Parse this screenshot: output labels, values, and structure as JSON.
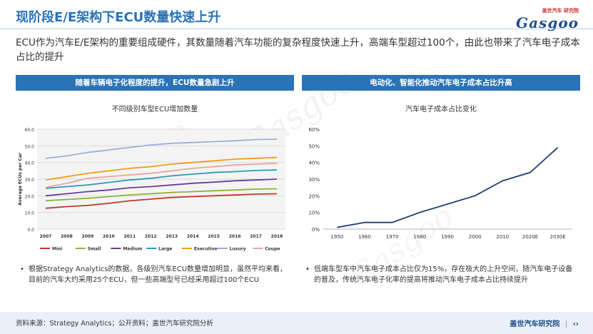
{
  "page": {
    "title": "现阶段E/E架构下ECU数量快速上升",
    "intro": "ECU作为汽车E/E架构的重要组成硬件，其数量随着汽车功能的复杂程度快速上升，高端车型超过100个，由此也带来了汽车电子成本占比的提升",
    "logo_top": "盖世汽车 研究院",
    "logo_main": "Gasgoo",
    "watermark": "Gasgoo"
  },
  "left": {
    "banner": "随着车辆电子化程度的提升，ECU数量急剧上升",
    "bullet": "根据Strategy Analytics的数据，各级别汽车ECU数量增加明显，虽然平均来看，目前的汽车大约采用25个ECU，但一些高端型号已经采用超过100个ECU"
  },
  "right": {
    "banner": "电动化、智能化推动汽车电子成本占比升高",
    "bullet": "低端车型车中汽车电子成本占比仅为15%，存在极大的上升空间，随汽车电子设备的普及，传统汽车电子化率的提高将推动汽车电子成本占比持续提升"
  },
  "footer": {
    "source": "资料来源：Strategy Analytics；公开资料；盖世汽车研究院分析",
    "brand": "盖世汽车研究院",
    "separator": "|"
  },
  "chart_data": [
    {
      "type": "line",
      "title": "不同级别车型ECU增加数量",
      "xlabel": "",
      "ylabel": "Average ECUs per Car",
      "x": [
        "2007",
        "2008",
        "2009",
        "2010",
        "2011",
        "2012",
        "2013",
        "2014",
        "2015",
        "2016",
        "2017",
        "2018"
      ],
      "ylim": [
        0,
        60
      ],
      "yticks": [
        "0.0",
        "10.0",
        "20.0",
        "30.0",
        "40.0",
        "50.0",
        "60.0"
      ],
      "grid": true,
      "legend": "bottom",
      "series": [
        {
          "name": "Mini",
          "color": "#c0392b",
          "values": [
            12.5,
            13.5,
            14.2,
            15.5,
            17.0,
            18.0,
            19.0,
            19.5,
            20.0,
            20.5,
            21.0,
            21.2
          ]
        },
        {
          "name": "Small",
          "color": "#8db33a",
          "values": [
            17.0,
            17.8,
            18.5,
            19.5,
            20.5,
            21.2,
            22.0,
            22.5,
            23.0,
            23.5,
            24.0,
            24.2
          ]
        },
        {
          "name": "Medium",
          "color": "#6a3d9a",
          "values": [
            20.0,
            21.2,
            22.5,
            23.5,
            24.8,
            25.5,
            26.5,
            27.5,
            28.2,
            29.0,
            29.5,
            30.0
          ]
        },
        {
          "name": "Large",
          "color": "#2a9db0",
          "values": [
            24.5,
            25.5,
            26.5,
            28.0,
            29.5,
            30.5,
            32.0,
            33.0,
            34.0,
            34.5,
            35.2,
            35.5
          ]
        },
        {
          "name": "Executive",
          "color": "#f39c12",
          "values": [
            29.5,
            31.5,
            33.5,
            35.0,
            36.5,
            37.5,
            39.0,
            40.0,
            41.0,
            42.0,
            42.5,
            43.0
          ]
        },
        {
          "name": "Luxury",
          "color": "#9ab0dc",
          "values": [
            42.5,
            44.0,
            46.0,
            47.5,
            49.0,
            50.5,
            51.5,
            52.0,
            52.5,
            53.0,
            53.8,
            54.0
          ]
        },
        {
          "name": "Coupe",
          "color": "#e6a5a0",
          "values": [
            25.0,
            27.5,
            30.5,
            31.5,
            32.5,
            33.5,
            35.0,
            36.5,
            37.5,
            38.5,
            39.0,
            39.5
          ]
        }
      ]
    },
    {
      "type": "line",
      "title": "汽车电子成本占比变化",
      "xlabel": "",
      "ylabel": "",
      "x": [
        "1950",
        "1960",
        "1970",
        "1980",
        "1990",
        "2000",
        "2010",
        "2020E",
        "2030E"
      ],
      "ylim": [
        0,
        60
      ],
      "yticks": [
        "0%",
        "10%",
        "20%",
        "30%",
        "40%",
        "50%",
        "60%"
      ],
      "grid": false,
      "series": [
        {
          "name": "",
          "color": "#1f3f73",
          "values": [
            1,
            4,
            4,
            10,
            15,
            20,
            29,
            34,
            49
          ]
        }
      ]
    }
  ]
}
